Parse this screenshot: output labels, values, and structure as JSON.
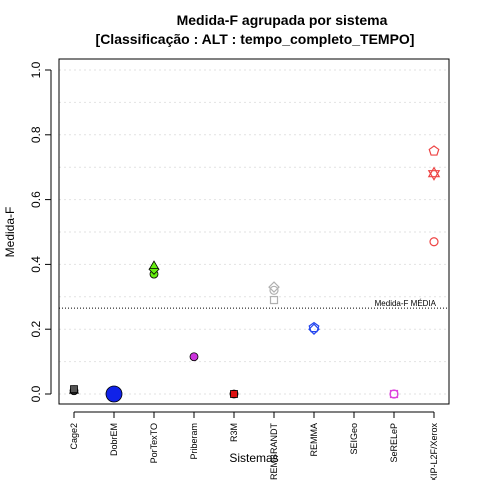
{
  "chart_data": {
    "type": "scatter",
    "title": "Medida-F agrupada por sistema",
    "subtitle": "[Classificação : ALT : tempo_completo_TEMPO]",
    "xlabel": "Sistemas",
    "ylabel": "Medida-F",
    "ylim": [
      0,
      1
    ],
    "yticks": [
      "0.0",
      "0.2",
      "0.4",
      "0.6",
      "0.8",
      "1.0"
    ],
    "grid": true,
    "categories": [
      "Cage2",
      "DobrEM",
      "PorTexTO",
      "Priberam",
      "R3M",
      "REMBRANDT",
      "REMMA",
      "SEIGeo",
      "SeRELeP",
      "XIP-L2F/Xerox"
    ],
    "reference_line": {
      "value": 0.265,
      "label": "Medida-F MÉDIA"
    },
    "points": [
      {
        "category": "Cage2",
        "value": 0.01,
        "marker": "circle-filled",
        "color": "#555555"
      },
      {
        "category": "Cage2",
        "value": 0.01,
        "marker": "triangle-filled",
        "color": "#555555"
      },
      {
        "category": "Cage2",
        "value": 0.015,
        "marker": "square-filled",
        "color": "#555555"
      },
      {
        "category": "DobrEM",
        "value": 0.0,
        "marker": "circle-filled-large",
        "color": "#1022e8"
      },
      {
        "category": "PorTexTO",
        "value": 0.37,
        "marker": "circle-filled",
        "color": "#66ee11"
      },
      {
        "category": "PorTexTO",
        "value": 0.385,
        "marker": "diamond-filled",
        "color": "#66ee11"
      },
      {
        "category": "PorTexTO",
        "value": 0.395,
        "marker": "triangle-filled",
        "color": "#66ee11"
      },
      {
        "category": "Priberam",
        "value": 0.115,
        "marker": "circle-filled",
        "color": "#cc33dd"
      },
      {
        "category": "R3M",
        "value": 0.0,
        "marker": "circle-filled",
        "color": "#dd1111"
      },
      {
        "category": "R3M",
        "value": 0.0,
        "marker": "square-filled",
        "color": "#dd1111"
      },
      {
        "category": "REMBRANDT",
        "value": 0.29,
        "marker": "square-open",
        "color": "#b0b0b0"
      },
      {
        "category": "REMBRANDT",
        "value": 0.32,
        "marker": "circle-open",
        "color": "#b0b0b0"
      },
      {
        "category": "REMBRANDT",
        "value": 0.33,
        "marker": "diamond-open",
        "color": "#b0b0b0"
      },
      {
        "category": "REMMA",
        "value": 0.2,
        "marker": "diamond-open",
        "color": "#2244ee"
      },
      {
        "category": "REMMA",
        "value": 0.205,
        "marker": "pentagon-open",
        "color": "#2244ee"
      },
      {
        "category": "SeRELeP",
        "value": 0.0,
        "marker": "circle-open",
        "color": "#dd44dd"
      },
      {
        "category": "SeRELeP",
        "value": 0.0,
        "marker": "square-open",
        "color": "#dd44dd"
      },
      {
        "category": "XIP-L2F/Xerox",
        "value": 0.47,
        "marker": "circle-open",
        "color": "#ee4444"
      },
      {
        "category": "XIP-L2F/Xerox",
        "value": 0.68,
        "marker": "star-of-david-open",
        "color": "#ee4444"
      },
      {
        "category": "XIP-L2F/Xerox",
        "value": 0.75,
        "marker": "pentagon-open",
        "color": "#ee4444"
      }
    ]
  }
}
